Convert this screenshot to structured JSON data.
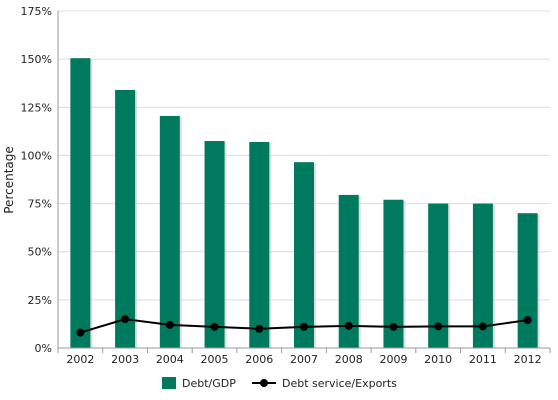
{
  "chart_data": {
    "type": "bar",
    "categories": [
      "2002",
      "2003",
      "2004",
      "2005",
      "2006",
      "2007",
      "2008",
      "2009",
      "2010",
      "2011",
      "2012"
    ],
    "series": [
      {
        "name": "Debt/GDP",
        "type": "bar",
        "color": "#007a5e",
        "values": [
          150.5,
          134,
          120.5,
          107.5,
          107,
          96.5,
          79.5,
          77,
          75,
          75,
          70
        ]
      },
      {
        "name": "Debt service/Exports",
        "type": "line",
        "color": "#000000",
        "values": [
          8,
          15,
          12,
          11,
          10,
          11,
          11.5,
          11,
          11.2,
          11.2,
          14.5
        ]
      }
    ],
    "y_ticks": [
      "0%",
      "25%",
      "50%",
      "75%",
      "100%",
      "125%",
      "150%",
      "175%"
    ],
    "ylim": [
      0,
      175
    ],
    "ylabel": "Percentage",
    "xlabel": "",
    "title": "",
    "grid": true,
    "legend_position": "bottom-center"
  }
}
